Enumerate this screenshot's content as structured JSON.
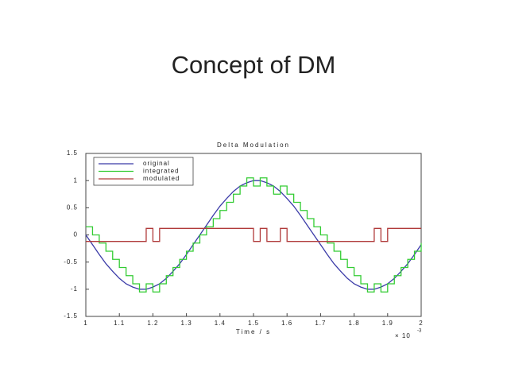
{
  "slide_title": "Concept of DM",
  "chart_data": {
    "type": "line",
    "title": "Delta Modulation",
    "x_label": "Time / s",
    "x_multiplier": "× 10",
    "x_multiplier_exp": "-3",
    "x": [
      1.0,
      1.02,
      1.04,
      1.06,
      1.08,
      1.1,
      1.12,
      1.14,
      1.16,
      1.18,
      1.2,
      1.22,
      1.24,
      1.26,
      1.28,
      1.3,
      1.32,
      1.34,
      1.36,
      1.38,
      1.4,
      1.42,
      1.44,
      1.46,
      1.48,
      1.5,
      1.52,
      1.54,
      1.56,
      1.58,
      1.6,
      1.62,
      1.64,
      1.66,
      1.68,
      1.7,
      1.72,
      1.74,
      1.76,
      1.78,
      1.8,
      1.82,
      1.84,
      1.86,
      1.88,
      1.9,
      1.92,
      1.94,
      1.96,
      1.98,
      2.0
    ],
    "series": [
      {
        "name": "original",
        "color": "#3b3ba8",
        "drawstyle": "line",
        "values": [
          0,
          -0.18,
          -0.36,
          -0.53,
          -0.67,
          -0.8,
          -0.9,
          -0.96,
          -1.0,
          -1.0,
          -0.96,
          -0.9,
          -0.8,
          -0.67,
          -0.53,
          -0.36,
          -0.18,
          0,
          0.18,
          0.36,
          0.53,
          0.67,
          0.8,
          0.9,
          0.96,
          1.0,
          1.0,
          0.96,
          0.9,
          0.8,
          0.67,
          0.53,
          0.36,
          0.18,
          0,
          -0.18,
          -0.36,
          -0.53,
          -0.67,
          -0.8,
          -0.9,
          -0.96,
          -1.0,
          -1.0,
          -0.96,
          -0.9,
          -0.8,
          -0.67,
          -0.53,
          -0.36,
          -0.18
        ]
      },
      {
        "name": "integrated",
        "color": "#33cc33",
        "drawstyle": "steps",
        "values": [
          0.15,
          0,
          -0.15,
          -0.3,
          -0.45,
          -0.6,
          -0.75,
          -0.9,
          -1.05,
          -0.9,
          -1.05,
          -0.9,
          -0.75,
          -0.6,
          -0.45,
          -0.3,
          -0.15,
          0,
          0.15,
          0.3,
          0.45,
          0.6,
          0.75,
          0.9,
          1.05,
          0.9,
          1.05,
          0.9,
          0.75,
          0.9,
          0.75,
          0.6,
          0.45,
          0.3,
          0.15,
          0,
          -0.15,
          -0.3,
          -0.45,
          -0.6,
          -0.75,
          -0.9,
          -1.05,
          -0.9,
          -1.05,
          -0.9,
          -0.75,
          -0.6,
          -0.45,
          -0.3,
          -0.15
        ]
      },
      {
        "name": "modulated",
        "color": "#b03a3a",
        "drawstyle": "steps",
        "values": [
          -0.12,
          -0.12,
          -0.12,
          -0.12,
          -0.12,
          -0.12,
          -0.12,
          -0.12,
          -0.12,
          0.12,
          -0.12,
          0.12,
          0.12,
          0.12,
          0.12,
          0.12,
          0.12,
          0.12,
          0.12,
          0.12,
          0.12,
          0.12,
          0.12,
          0.12,
          0.12,
          -0.12,
          0.12,
          -0.12,
          -0.12,
          0.12,
          -0.12,
          -0.12,
          -0.12,
          -0.12,
          -0.12,
          -0.12,
          -0.12,
          -0.12,
          -0.12,
          -0.12,
          -0.12,
          -0.12,
          -0.12,
          0.12,
          -0.12,
          0.12,
          0.12,
          0.12,
          0.12,
          0.12,
          0.12
        ]
      }
    ],
    "xlim": [
      1,
      2
    ],
    "xticks": [
      1,
      1.1,
      1.2,
      1.3,
      1.4,
      1.5,
      1.6,
      1.7,
      1.8,
      1.9,
      2
    ],
    "ylim": [
      -1.5,
      1.5
    ],
    "yticks": [
      -1.5,
      -1,
      -0.5,
      0,
      0.5,
      1,
      1.5
    ],
    "legend": "upper-left",
    "grid": false
  }
}
